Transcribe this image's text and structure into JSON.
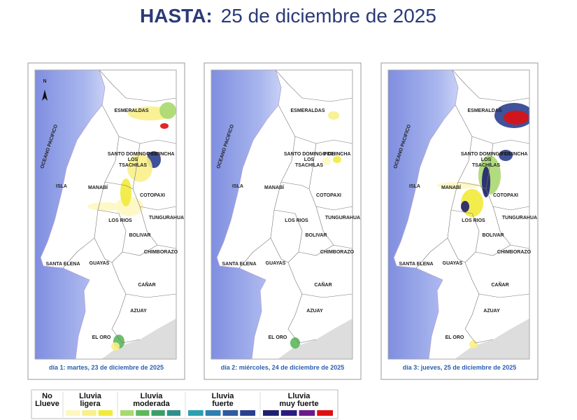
{
  "header": {
    "title_lead": "HASTA:",
    "title_date": "25 de diciembre de 2025"
  },
  "map": {
    "north": "N",
    "ocean": "OCEANO PACIFICO",
    "labels": [
      "ESMERALDAS",
      "PICHINCHA",
      "SANTO DOMINGO DE",
      "LOS",
      "TSACHILAS",
      "ISLA",
      "MANABÍ",
      "COTOPAXI",
      "LOS RIOS",
      "TUNGURAHUA",
      "BOLIVAR",
      "CHIMBORAZO",
      "SANTA ELENA",
      "GUAYAS",
      "CAÑAR",
      "AZUAY",
      "EL ORO"
    ]
  },
  "panels": [
    {
      "caption": "día 1: martes, 23 de diciembre de 2025"
    },
    {
      "caption": "día 2: miércoles, 24 de diciembre de 2025"
    },
    {
      "caption": "día 3: jueves, 25 de diciembre de 2025"
    }
  ],
  "legend": [
    {
      "lines": [
        "No",
        "Llueve"
      ],
      "colors": [
        "#ffffff"
      ]
    },
    {
      "lines": [
        "Lluvia",
        "ligera"
      ],
      "colors": [
        "#fdf7c0",
        "#faf08a",
        "#f2ea3a"
      ]
    },
    {
      "lines": [
        "Lluvia",
        "moderada"
      ],
      "colors": [
        "#a8d870",
        "#5cb85c",
        "#3c9e6a",
        "#2f8f8a"
      ]
    },
    {
      "lines": [
        "Lluvia",
        "fuerte"
      ],
      "colors": [
        "#2aa0b0",
        "#2e7fb0",
        "#2f5aa0",
        "#2a3f8f"
      ]
    },
    {
      "lines": [
        "Lluvia",
        "muy fuerte"
      ],
      "colors": [
        "#1f1f70",
        "#2a1a80",
        "#6a1a8a",
        "#e01010"
      ]
    }
  ]
}
